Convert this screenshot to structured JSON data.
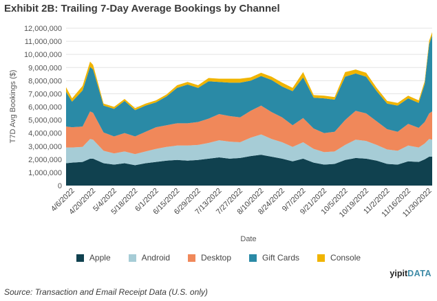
{
  "chart_data": {
    "type": "area",
    "stacked": true,
    "title": "Exhibit 2B: Trailing 7-Day Average Bookings by Channel",
    "xlabel": "Date",
    "ylabel": "T7D Avg Bookings ($)",
    "ylim": [
      0,
      12000000
    ],
    "yticks": [
      "0",
      "1,000,000",
      "2,000,000",
      "3,000,000",
      "4,000,000",
      "5,000,000",
      "6,000,000",
      "7,000,000",
      "8,000,000",
      "9,000,000",
      "10,000,000",
      "11,000,000",
      "12,000,000"
    ],
    "x_tick_labels": [
      "4/6/2022",
      "4/20/2022",
      "5/4/2022",
      "5/18/2022",
      "6/1/2022",
      "6/15/2022",
      "6/29/2022",
      "7/13/2022",
      "7/27/2022",
      "8/10/2022",
      "8/24/2022",
      "9/7/2022",
      "9/21/2022",
      "10/5/2022",
      "10/19/2022",
      "11/2/2022",
      "11/16/2022",
      "11/30/2022"
    ],
    "x": [
      "4/2/2022",
      "4/6/2022",
      "4/13/2022",
      "4/18/2022",
      "4/20/2022",
      "4/27/2022",
      "5/4/2022",
      "5/11/2022",
      "5/18/2022",
      "5/25/2022",
      "6/1/2022",
      "6/8/2022",
      "6/15/2022",
      "6/22/2022",
      "6/29/2022",
      "7/6/2022",
      "7/13/2022",
      "7/20/2022",
      "7/27/2022",
      "8/3/2022",
      "8/10/2022",
      "8/17/2022",
      "8/24/2022",
      "8/31/2022",
      "9/7/2022",
      "9/14/2022",
      "9/21/2022",
      "9/28/2022",
      "10/5/2022",
      "10/12/2022",
      "10/19/2022",
      "10/26/2022",
      "11/2/2022",
      "11/9/2022",
      "11/16/2022",
      "11/23/2022",
      "11/27/2022",
      "11/30/2022",
      "12/2/2022"
    ],
    "series": [
      {
        "name": "Apple",
        "color": "#10414f",
        "values": [
          1700000,
          1750000,
          1800000,
          2050000,
          2050000,
          1700000,
          1600000,
          1700000,
          1550000,
          1700000,
          1800000,
          1900000,
          1950000,
          1900000,
          1950000,
          2050000,
          2150000,
          2050000,
          2100000,
          2250000,
          2350000,
          2200000,
          2050000,
          1850000,
          2050000,
          1750000,
          1600000,
          1650000,
          1950000,
          2100000,
          2050000,
          1900000,
          1650000,
          1600000,
          1850000,
          1800000,
          2000000,
          2200000,
          2200000
        ]
      },
      {
        "name": "Android",
        "color": "#a6ccd6",
        "values": [
          1200000,
          1150000,
          1150000,
          1500000,
          1450000,
          950000,
          850000,
          900000,
          850000,
          900000,
          1000000,
          1050000,
          1100000,
          1150000,
          1150000,
          1200000,
          1300000,
          1300000,
          1200000,
          1400000,
          1550000,
          1350000,
          1250000,
          1100000,
          1250000,
          1050000,
          950000,
          950000,
          1150000,
          1400000,
          1350000,
          1200000,
          1100000,
          1050000,
          1200000,
          1100000,
          1200000,
          1350000,
          1300000
        ]
      },
      {
        "name": "Desktop",
        "color": "#f0885a",
        "values": [
          1600000,
          1550000,
          1550000,
          2100000,
          2050000,
          1400000,
          1300000,
          1400000,
          1350000,
          1500000,
          1650000,
          1650000,
          1700000,
          1700000,
          1750000,
          1850000,
          2000000,
          1950000,
          1900000,
          2050000,
          2200000,
          2050000,
          1900000,
          1650000,
          1850000,
          1550000,
          1450000,
          1500000,
          1900000,
          2200000,
          2100000,
          1800000,
          1550000,
          1450000,
          1650000,
          1500000,
          1650000,
          1950000,
          2150000
        ]
      },
      {
        "name": "Gift Cards",
        "color": "#2a8aa6",
        "values": [
          2650000,
          1950000,
          2750000,
          3400000,
          3300000,
          2050000,
          2100000,
          2450000,
          2000000,
          2000000,
          1900000,
          2200000,
          2700000,
          2950000,
          2600000,
          2850000,
          2450000,
          2550000,
          2650000,
          2300000,
          2250000,
          2450000,
          2350000,
          2600000,
          3100000,
          2350000,
          2650000,
          2450000,
          3300000,
          2850000,
          2800000,
          2300000,
          1950000,
          2000000,
          1950000,
          1900000,
          2900000,
          5300000,
          5800000
        ]
      },
      {
        "name": "Console",
        "color": "#f0b400",
        "values": [
          350000,
          250000,
          350000,
          400000,
          350000,
          150000,
          150000,
          150000,
          150000,
          150000,
          150000,
          150000,
          200000,
          200000,
          200000,
          250000,
          250000,
          300000,
          300000,
          250000,
          250000,
          250000,
          300000,
          250000,
          400000,
          200000,
          200000,
          200000,
          350000,
          300000,
          300000,
          250000,
          200000,
          200000,
          200000,
          200000,
          200000,
          250000,
          250000
        ]
      }
    ]
  },
  "legend": {
    "items": [
      {
        "label": "Apple",
        "color": "#10414f"
      },
      {
        "label": "Android",
        "color": "#a6ccd6"
      },
      {
        "label": "Desktop",
        "color": "#f0885a"
      },
      {
        "label": "Gift Cards",
        "color": "#2a8aa6"
      },
      {
        "label": "Console",
        "color": "#f0b400"
      }
    ]
  },
  "brand": {
    "main": "yipit",
    "suffix": "DATA"
  },
  "source": "Source: Transaction and Email Receipt Data (U.S. only)"
}
